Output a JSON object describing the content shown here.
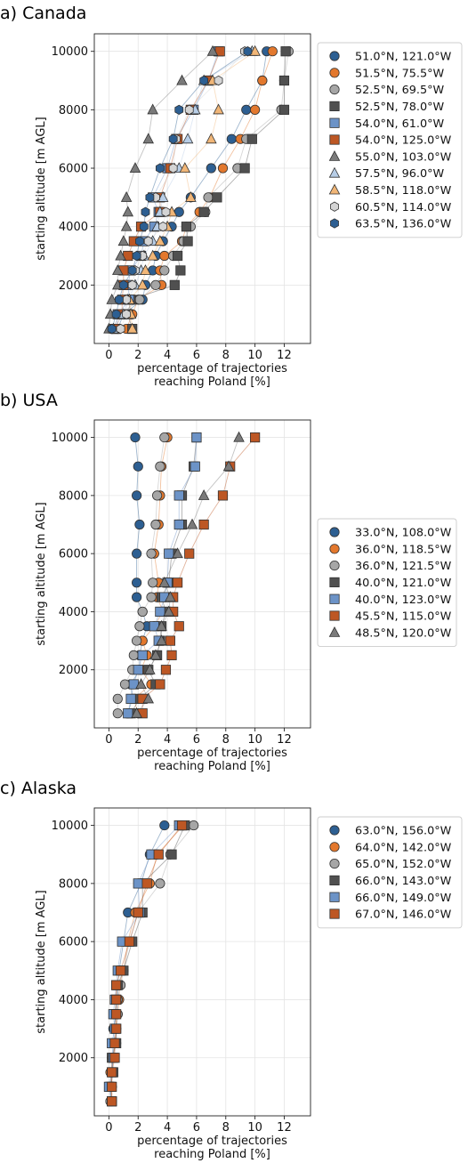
{
  "figure": {
    "panels": [
      "a) Canada",
      "b) USA",
      "c) Alaska"
    ]
  },
  "colors": {
    "blue_dark": "#2d5f92",
    "orange": "#e3782d",
    "gray_light": "#a6a6a6",
    "gray_dark": "#505050",
    "blue_light": "#6c93c7",
    "orange_dark": "#bd5724",
    "gray_mid": "#7a7a7a",
    "blue_pale": "#b7cde6",
    "orange_pale": "#f1b677",
    "gray_pale": "#d4d4d4",
    "grid": "#e4e4e4"
  },
  "chart_data": [
    {
      "type": "scatter",
      "title": "a) Canada",
      "xlabel": "percentage of trajectories\nreaching Poland [%]",
      "ylabel": "starting altitude [m AGL]",
      "xlim": [
        -1,
        13.8
      ],
      "ylim": [
        0,
        10600
      ],
      "xticks": [
        0,
        2,
        4,
        6,
        8,
        10,
        12
      ],
      "yticks": [
        2000,
        4000,
        6000,
        8000,
        10000
      ],
      "grid": true,
      "legend_position": "right",
      "altitudes": [
        500,
        1000,
        1500,
        2000,
        2500,
        3000,
        3500,
        4000,
        4500,
        5000,
        6000,
        7000,
        8000,
        9000,
        10000
      ],
      "series": [
        {
          "name": "51.0°N, 121.0°W",
          "marker": "circle",
          "color": "blue_dark",
          "values": [
            0.6,
            1.0,
            2.3,
            2.5,
            3.0,
            3.2,
            3.7,
            4.3,
            4.8,
            5.6,
            7.0,
            8.4,
            9.4,
            10.5,
            10.8
          ]
        },
        {
          "name": "51.5°N, 75.5°W",
          "marker": "circle",
          "color": "orange",
          "values": [
            1.2,
            1.6,
            2.0,
            3.6,
            3.5,
            3.8,
            5.0,
            5.3,
            6.2,
            6.9,
            7.8,
            9.0,
            10.0,
            10.5,
            11.2
          ]
        },
        {
          "name": "52.5°N, 69.5°W",
          "marker": "circle",
          "color": "gray_light",
          "values": [
            0.2,
            0.8,
            2.1,
            3.2,
            3.8,
            4.4,
            5.1,
            5.6,
            6.6,
            6.8,
            8.8,
            9.4,
            11.8,
            12.0,
            12.3
          ]
        },
        {
          "name": "52.5°N, 78.0°W",
          "marker": "square",
          "color": "gray_dark",
          "values": [
            1.6,
            1.3,
            1.5,
            4.5,
            4.9,
            4.7,
            5.4,
            5.3,
            6.5,
            7.4,
            9.3,
            9.8,
            12.0,
            12.0,
            12.1
          ]
        },
        {
          "name": "54.0°N, 61.0°W",
          "marker": "square",
          "color": "blue_light",
          "values": [
            0.5,
            0.6,
            1.4,
            1.3,
            1.5,
            2.2,
            2.4,
            3.1,
            3.4,
            3.0,
            4.0,
            4.6,
            5.8,
            6.8,
            7.5
          ]
        },
        {
          "name": "54.0°N, 125.0°W",
          "marker": "square",
          "color": "orange_dark",
          "values": [
            0.4,
            0.9,
            0.9,
            1.0,
            1.0,
            1.3,
            1.7,
            2.2,
            3.5,
            3.5,
            4.2,
            4.7,
            5.6,
            6.8,
            7.6
          ]
        },
        {
          "name": "55.0°N, 103.0°W",
          "marker": "triangle",
          "color": "gray_mid",
          "values": [
            0.0,
            0.1,
            0.2,
            0.6,
            0.6,
            0.8,
            1.0,
            1.2,
            1.3,
            1.2,
            1.8,
            2.7,
            3.0,
            5.0,
            7.1
          ]
        },
        {
          "name": "57.5°N, 96.0°W",
          "marker": "triangle",
          "color": "blue_pale",
          "values": [
            0.3,
            1.0,
            1.3,
            1.8,
            2.2,
            2.4,
            3.0,
            3.3,
            3.5,
            3.7,
            4.8,
            5.4,
            5.9,
            6.5,
            9.8
          ]
        },
        {
          "name": "58.5°N, 118.0°W",
          "marker": "triangle",
          "color": "orange_pale",
          "values": [
            1.6,
            1.5,
            1.4,
            2.3,
            2.5,
            3.0,
            3.5,
            4.0,
            4.3,
            5.6,
            5.2,
            7.0,
            7.5,
            7.1,
            10.0
          ]
        },
        {
          "name": "60.5°N, 114.0°W",
          "marker": "hexagon",
          "color": "gray_pale",
          "values": [
            0.8,
            1.2,
            1.2,
            1.6,
            1.8,
            2.3,
            2.7,
            3.7,
            3.9,
            3.2,
            4.4,
            4.6,
            5.5,
            7.5,
            9.3
          ]
        },
        {
          "name": "63.5°N, 136.0°W",
          "marker": "hexagon",
          "color": "blue_dark",
          "values": [
            0.2,
            0.5,
            0.7,
            1.0,
            1.6,
            1.9,
            2.1,
            2.4,
            2.5,
            2.8,
            3.5,
            4.4,
            4.8,
            6.5,
            9.5
          ]
        }
      ]
    },
    {
      "type": "scatter",
      "title": "b) USA",
      "xlabel": "percentage of trajectories\nreaching Poland [%]",
      "ylabel": "starting altitude [m AGL]",
      "xlim": [
        -1,
        13.8
      ],
      "ylim": [
        0,
        10600
      ],
      "xticks": [
        0,
        2,
        4,
        6,
        8,
        10,
        12
      ],
      "yticks": [
        2000,
        4000,
        6000,
        8000,
        10000
      ],
      "grid": true,
      "legend_position": "right",
      "altitudes": [
        500,
        1000,
        1500,
        2000,
        2500,
        3000,
        3500,
        4000,
        4500,
        5000,
        6000,
        7000,
        8000,
        9000,
        10000
      ],
      "series": [
        {
          "name": "33.0°N, 108.0°W",
          "marker": "circle",
          "color": "blue_dark",
          "values": [
            1.3,
            1.6,
            1.5,
            2.1,
            2.1,
            2.3,
            2.6,
            2.3,
            1.9,
            1.9,
            1.9,
            2.1,
            1.9,
            2.0,
            1.8
          ]
        },
        {
          "name": "36.0°N, 118.5°W",
          "marker": "circle",
          "color": "orange",
          "values": [
            2.0,
            1.7,
            2.9,
            2.2,
            2.6,
            2.3,
            3.1,
            3.7,
            3.3,
            3.4,
            3.1,
            3.4,
            3.5,
            3.6,
            4.0
          ]
        },
        {
          "name": "36.0°N, 121.5°W",
          "marker": "circle",
          "color": "gray_light",
          "values": [
            0.6,
            0.6,
            1.1,
            1.6,
            1.7,
            1.9,
            2.1,
            2.3,
            2.9,
            3.0,
            2.9,
            3.2,
            3.3,
            3.5,
            3.8
          ]
        },
        {
          "name": "40.0°N, 121.0°W",
          "marker": "square",
          "color": "gray_dark",
          "values": [
            1.5,
            2.1,
            3.2,
            2.7,
            3.3,
            3.5,
            3.6,
            3.9,
            3.6,
            4.1,
            4.3,
            5.0,
            5.0,
            5.8,
            6.0
          ]
        },
        {
          "name": "40.0°N, 123.0°W",
          "marker": "square",
          "color": "blue_light",
          "values": [
            1.3,
            1.5,
            1.7,
            2.0,
            2.3,
            3.4,
            3.1,
            3.5,
            3.8,
            4.0,
            4.1,
            4.8,
            4.8,
            5.9,
            6.0
          ]
        },
        {
          "name": "45.5°N, 115.0°W",
          "marker": "square",
          "color": "orange_dark",
          "values": [
            2.3,
            2.3,
            3.5,
            3.9,
            4.3,
            4.2,
            4.8,
            4.4,
            4.4,
            4.7,
            5.5,
            6.5,
            7.8,
            8.3,
            10.0
          ]
        },
        {
          "name": "48.5°N, 120.0°W",
          "marker": "triangle",
          "color": "gray_mid",
          "values": [
            1.9,
            2.7,
            2.2,
            2.8,
            3.2,
            3.6,
            3.6,
            4.1,
            4.2,
            3.8,
            4.7,
            5.7,
            6.5,
            8.2,
            8.9
          ]
        }
      ]
    },
    {
      "type": "scatter",
      "title": "c) Alaska",
      "xlabel": "percentage of trajectories\nreaching Poland [%]",
      "ylabel": "starting altitude [m AGL]",
      "xlim": [
        -1,
        13.8
      ],
      "ylim": [
        0,
        10600
      ],
      "xticks": [
        0,
        2,
        4,
        6,
        8,
        10,
        12
      ],
      "yticks": [
        2000,
        4000,
        6000,
        8000,
        10000
      ],
      "grid": true,
      "legend_position": "right",
      "altitudes": [
        500,
        1000,
        1500,
        2000,
        2500,
        3000,
        3500,
        4000,
        4500,
        5000,
        6000,
        7000,
        8000,
        9000,
        10000
      ],
      "series": [
        {
          "name": "63.0°N, 156.0°W",
          "marker": "circle",
          "color": "blue_dark",
          "values": [
            0.1,
            0.1,
            0.2,
            0.2,
            0.4,
            0.3,
            0.5,
            0.6,
            0.6,
            0.7,
            1.0,
            1.3,
            2.2,
            2.8,
            3.8
          ]
        },
        {
          "name": "64.0°N, 142.0°W",
          "marker": "circle",
          "color": "orange",
          "values": [
            0.2,
            0.2,
            0.1,
            0.3,
            0.4,
            0.5,
            0.6,
            0.7,
            0.7,
            1.0,
            1.3,
            1.8,
            2.8,
            3.3,
            5.1
          ]
        },
        {
          "name": "65.0°N, 152.0°W",
          "marker": "circle",
          "color": "gray_light",
          "values": [
            0.1,
            0.2,
            0.2,
            0.3,
            0.5,
            0.5,
            0.6,
            0.6,
            0.8,
            1.0,
            1.4,
            2.0,
            3.5,
            4.2,
            5.8
          ]
        },
        {
          "name": "66.0°N, 143.0°W",
          "marker": "square",
          "color": "gray_dark",
          "values": [
            0.2,
            0.1,
            0.3,
            0.2,
            0.5,
            0.5,
            0.4,
            0.5,
            0.6,
            1.0,
            1.6,
            2.3,
            2.3,
            4.3,
            5.2
          ]
        },
        {
          "name": "66.0°N, 149.0°W",
          "marker": "square",
          "color": "blue_light",
          "values": [
            0.2,
            0.0,
            0.2,
            0.3,
            0.2,
            0.4,
            0.3,
            0.4,
            0.5,
            0.6,
            0.9,
            2.1,
            2.0,
            2.9,
            4.8
          ]
        },
        {
          "name": "67.0°N, 146.0°W",
          "marker": "square",
          "color": "orange_dark",
          "values": [
            0.2,
            0.2,
            0.2,
            0.4,
            0.4,
            0.5,
            0.5,
            0.5,
            0.5,
            0.8,
            1.4,
            2.0,
            2.6,
            3.4,
            5.0
          ]
        }
      ]
    }
  ]
}
